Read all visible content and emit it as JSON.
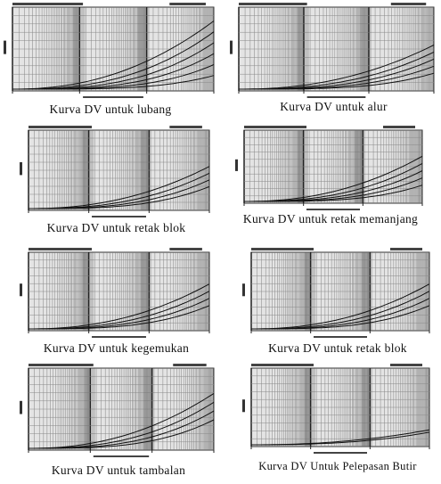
{
  "chart_data": [
    {
      "type": "line",
      "title": "",
      "caption": "Kurva DV untuk lubang",
      "curves": 6,
      "steep": 0.85
    },
    {
      "type": "line",
      "title": "",
      "caption": "Kurva DV untuk alur",
      "curves": 5,
      "steep": 0.55
    },
    {
      "type": "line",
      "title": "",
      "caption": "Kurva DV untuk retak blok",
      "curves": 4,
      "steep": 0.55
    },
    {
      "type": "line",
      "title": "",
      "caption": "Kurva DV untuk retak memanjang",
      "curves": 5,
      "steep": 0.65
    },
    {
      "type": "line",
      "title": "",
      "caption": "Kurva DV untuk kegemukan",
      "curves": 4,
      "steep": 0.6
    },
    {
      "type": "line",
      "title": "",
      "caption": "Kurva DV untuk retak blok",
      "curves": 4,
      "steep": 0.6
    },
    {
      "type": "line",
      "title": "",
      "caption": "Kurva DV untuk tambalan",
      "curves": 4,
      "steep": 0.7
    },
    {
      "type": "line",
      "title": "",
      "caption": "Kurva DV Untuk Pelepasan Butir",
      "curves": 2,
      "steep": 0.2
    }
  ]
}
